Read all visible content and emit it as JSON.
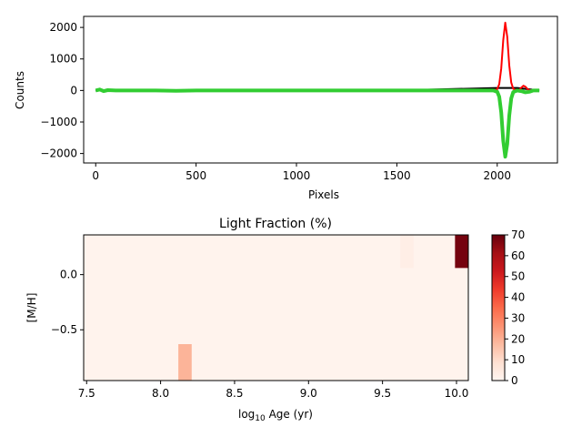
{
  "chart_data": [
    {
      "type": "line",
      "xlabel": "Pixels",
      "ylabel": "Counts",
      "xlim": [
        -60,
        2300
      ],
      "ylim": [
        -2300,
        2350
      ],
      "xticks": [
        "0",
        "500",
        "1000",
        "1500",
        "2000"
      ],
      "yticks": [
        "−2000",
        "−1000",
        "0",
        "1000",
        "2000"
      ],
      "series": [
        {
          "color": "#000000",
          "x": [
            0,
            500,
            1000,
            1500,
            2000,
            2100,
            2210
          ],
          "y": [
            0,
            0,
            0,
            0,
            80,
            80,
            0
          ]
        },
        {
          "color": "#ff0000",
          "x": [
            1980,
            2000,
            2010,
            2020,
            2030,
            2040,
            2050,
            2060,
            2070,
            2080,
            2100,
            2110,
            2120,
            2130,
            2140,
            2150,
            2160,
            2180
          ],
          "y": [
            0,
            40,
            200,
            700,
            1600,
            2150,
            1700,
            800,
            250,
            50,
            0,
            20,
            90,
            150,
            120,
            50,
            10,
            0
          ]
        },
        {
          "color": "#32cd32",
          "x": [
            0,
            20,
            40,
            60,
            100,
            200,
            300,
            400,
            500,
            600,
            700,
            800,
            900,
            1000,
            1100,
            1200,
            1300,
            1400,
            1500,
            1600,
            1700,
            1800,
            1900,
            1980,
            2000,
            2010,
            2020,
            2030,
            2040,
            2050,
            2060,
            2070,
            2080,
            2100,
            2120,
            2140,
            2160,
            2180,
            2210
          ],
          "y": [
            0,
            30,
            -20,
            10,
            0,
            0,
            0,
            -10,
            0,
            0,
            0,
            0,
            0,
            0,
            0,
            0,
            0,
            0,
            0,
            0,
            0,
            0,
            0,
            0,
            -40,
            -200,
            -700,
            -1600,
            -2100,
            -1700,
            -800,
            -250,
            -50,
            0,
            -20,
            -60,
            -40,
            0,
            0
          ]
        }
      ]
    },
    {
      "type": "heatmap",
      "title": "Light Fraction (%)",
      "xlabel": "log10 Age (yr)",
      "ylabel": "[M/H]",
      "xlim": [
        7.48,
        10.08
      ],
      "ylim": [
        -0.96,
        0.36
      ],
      "xticks": [
        "7.5",
        "8.0",
        "8.5",
        "9.0",
        "9.5",
        "10.0"
      ],
      "yticks": [
        "−0.5",
        "0.0"
      ],
      "background_value": 1,
      "cells": [
        {
          "x0": 8.12,
          "x1": 8.21,
          "y0": -0.96,
          "y1": -0.63,
          "value": 19
        },
        {
          "x0": 9.62,
          "x1": 9.71,
          "y0": 0.06,
          "y1": 0.36,
          "value": 3
        },
        {
          "x0": 9.99,
          "x1": 10.08,
          "y0": 0.06,
          "y1": 0.36,
          "value": 68
        }
      ],
      "colorbar": {
        "min": 0,
        "max": 70,
        "ticks": [
          "0",
          "10",
          "20",
          "30",
          "40",
          "50",
          "60",
          "70"
        ],
        "colors": [
          "#fff5f0",
          "#fee0d2",
          "#fcbba1",
          "#fc9272",
          "#fb6a4a",
          "#ef3b2c",
          "#cb181d",
          "#a50f15",
          "#67000d"
        ]
      }
    }
  ]
}
